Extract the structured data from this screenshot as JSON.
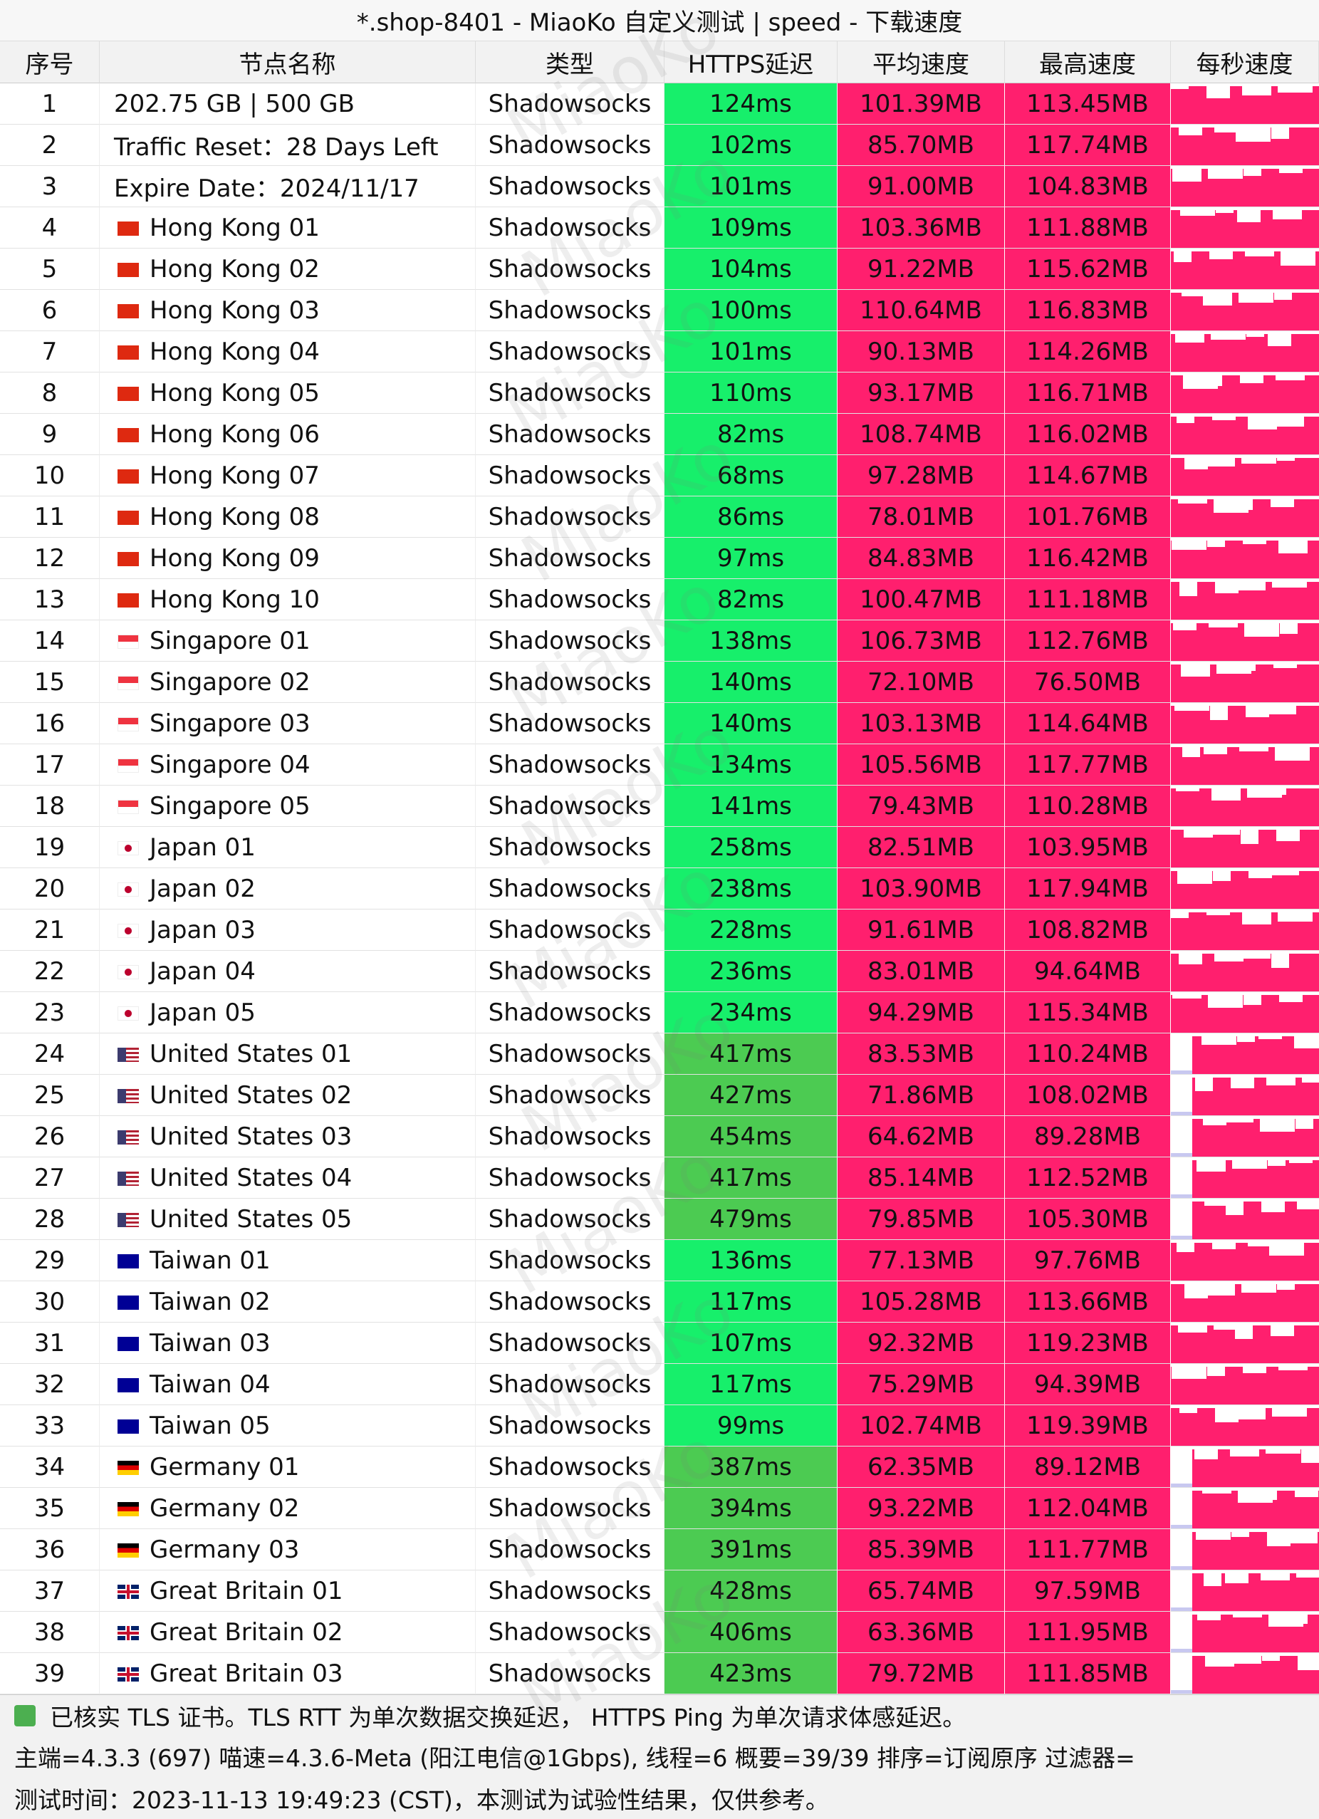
{
  "header": {
    "title": "*.shop-8401 - MiaoKo 自定义测试 | speed - 下载速度"
  },
  "watermark": "MiaoKo",
  "table": {
    "columns": [
      "序号",
      "节点名称",
      "类型",
      "HTTPS延迟",
      "平均速度",
      "最高速度",
      "每秒速度"
    ],
    "rows": [
      [
        1,
        "202.75 GB | 500 GB",
        "Shadowsocks",
        "124ms",
        "101.39MB",
        "113.45MB"
      ],
      [
        2,
        "Traffic Reset：28 Days Left",
        "Shadowsocks",
        "102ms",
        "85.70MB",
        "117.74MB"
      ],
      [
        3,
        "Expire Date：2024/11/17",
        "Shadowsocks",
        "101ms",
        "91.00MB",
        "104.83MB"
      ],
      [
        4,
        "Hong Kong 01",
        "Shadowsocks",
        "109ms",
        "103.36MB",
        "111.88MB"
      ],
      [
        5,
        "Hong Kong 02",
        "Shadowsocks",
        "104ms",
        "91.22MB",
        "115.62MB"
      ],
      [
        6,
        "Hong Kong 03",
        "Shadowsocks",
        "100ms",
        "110.64MB",
        "116.83MB"
      ],
      [
        7,
        "Hong Kong 04",
        "Shadowsocks",
        "101ms",
        "90.13MB",
        "114.26MB"
      ],
      [
        8,
        "Hong Kong 05",
        "Shadowsocks",
        "110ms",
        "93.17MB",
        "116.71MB"
      ],
      [
        9,
        "Hong Kong 06",
        "Shadowsocks",
        "82ms",
        "108.74MB",
        "116.02MB"
      ],
      [
        10,
        "Hong Kong 07",
        "Shadowsocks",
        "68ms",
        "97.28MB",
        "114.67MB"
      ],
      [
        11,
        "Hong Kong 08",
        "Shadowsocks",
        "86ms",
        "78.01MB",
        "101.76MB"
      ],
      [
        12,
        "Hong Kong 09",
        "Shadowsocks",
        "97ms",
        "84.83MB",
        "116.42MB"
      ],
      [
        13,
        "Hong Kong 10",
        "Shadowsocks",
        "82ms",
        "100.47MB",
        "111.18MB"
      ],
      [
        14,
        "Singapore 01",
        "Shadowsocks",
        "138ms",
        "106.73MB",
        "112.76MB"
      ],
      [
        15,
        "Singapore 02",
        "Shadowsocks",
        "140ms",
        "72.10MB",
        "76.50MB"
      ],
      [
        16,
        "Singapore 03",
        "Shadowsocks",
        "140ms",
        "103.13MB",
        "114.64MB"
      ],
      [
        17,
        "Singapore 04",
        "Shadowsocks",
        "134ms",
        "105.56MB",
        "117.77MB"
      ],
      [
        18,
        "Singapore 05",
        "Shadowsocks",
        "141ms",
        "79.43MB",
        "110.28MB"
      ],
      [
        19,
        "Japan 01",
        "Shadowsocks",
        "258ms",
        "82.51MB",
        "103.95MB"
      ],
      [
        20,
        "Japan 02",
        "Shadowsocks",
        "238ms",
        "103.90MB",
        "117.94MB"
      ],
      [
        21,
        "Japan 03",
        "Shadowsocks",
        "228ms",
        "91.61MB",
        "108.82MB"
      ],
      [
        22,
        "Japan 04",
        "Shadowsocks",
        "236ms",
        "83.01MB",
        "94.64MB"
      ],
      [
        23,
        "Japan 05",
        "Shadowsocks",
        "234ms",
        "94.29MB",
        "115.34MB"
      ],
      [
        24,
        "United States 01",
        "Shadowsocks",
        "417ms",
        "83.53MB",
        "110.24MB"
      ],
      [
        25,
        "United States 02",
        "Shadowsocks",
        "427ms",
        "71.86MB",
        "108.02MB"
      ],
      [
        26,
        "United States 03",
        "Shadowsocks",
        "454ms",
        "64.62MB",
        "89.28MB"
      ],
      [
        27,
        "United States 04",
        "Shadowsocks",
        "417ms",
        "85.14MB",
        "112.52MB"
      ],
      [
        28,
        "United States 05",
        "Shadowsocks",
        "479ms",
        "79.85MB",
        "105.30MB"
      ],
      [
        29,
        "Taiwan 01",
        "Shadowsocks",
        "136ms",
        "77.13MB",
        "97.76MB"
      ],
      [
        30,
        "Taiwan 02",
        "Shadowsocks",
        "117ms",
        "105.28MB",
        "113.66MB"
      ],
      [
        31,
        "Taiwan 03",
        "Shadowsocks",
        "107ms",
        "92.32MB",
        "119.23MB"
      ],
      [
        32,
        "Taiwan 04",
        "Shadowsocks",
        "117ms",
        "75.29MB",
        "94.39MB"
      ],
      [
        33,
        "Taiwan 05",
        "Shadowsocks",
        "99ms",
        "102.74MB",
        "119.39MB"
      ],
      [
        34,
        "Germany 01",
        "Shadowsocks",
        "387ms",
        "62.35MB",
        "89.12MB"
      ],
      [
        35,
        "Germany 02",
        "Shadowsocks",
        "394ms",
        "93.22MB",
        "112.04MB"
      ],
      [
        36,
        "Germany 03",
        "Shadowsocks",
        "391ms",
        "85.39MB",
        "111.77MB"
      ],
      [
        37,
        "Great Britain 01",
        "Shadowsocks",
        "428ms",
        "65.74MB",
        "97.59MB"
      ],
      [
        38,
        "Great Britain 02",
        "Shadowsocks",
        "406ms",
        "63.36MB",
        "111.95MB"
      ],
      [
        39,
        "Great Britain 03",
        "Shadowsocks",
        "423ms",
        "79.72MB",
        "111.85MB"
      ]
    ]
  },
  "footer": {
    "lines": [
      "已核实 TLS 证书。TLS RTT 为单次数据交换延迟， HTTPS Ping 为单次请求体感延迟。",
      "主端=4.3.3 (697) 喵速=4.3.6-Meta (阳江电信@1Gbps), 线程=6 概要=39/39 排序=订阅原序 过滤器=",
      "测试时间：2023-11-13 19:49:23 (CST)，本测试为试验性结果，仅供参考。"
    ]
  }
}
